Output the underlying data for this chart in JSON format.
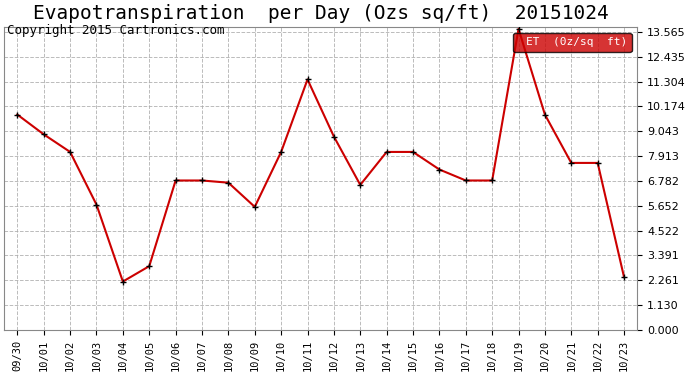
{
  "title": "Evapotranspiration  per Day (Ozs sq/ft)  20151024",
  "copyright": "Copyright 2015 Cartronics.com",
  "legend_label": "ET  (0z/sq  ft)",
  "x_labels": [
    "09/30",
    "10/01",
    "10/02",
    "10/03",
    "10/04",
    "10/05",
    "10/06",
    "10/07",
    "10/08",
    "10/09",
    "10/10",
    "10/11",
    "10/12",
    "10/13",
    "10/14",
    "10/15",
    "10/16",
    "10/17",
    "10/18",
    "10/19",
    "10/20",
    "10/21",
    "10/22",
    "10/23"
  ],
  "y_values": [
    9.8,
    8.9,
    8.1,
    5.7,
    2.2,
    2.9,
    6.8,
    6.8,
    6.7,
    5.6,
    8.1,
    11.4,
    8.8,
    6.6,
    8.1,
    8.1,
    7.3,
    6.8,
    6.8,
    13.7,
    9.8,
    7.6,
    7.6,
    2.4
  ],
  "y_ticks": [
    0.0,
    1.13,
    2.261,
    3.391,
    4.522,
    5.652,
    6.782,
    7.913,
    9.043,
    10.174,
    11.304,
    12.435,
    13.565
  ],
  "y_min": 0.0,
  "y_max": 13.565,
  "line_color": "#cc0000",
  "marker_color": "#000000",
  "background_color": "#ffffff",
  "grid_color": "#aaaaaa",
  "title_fontsize": 14,
  "copyright_fontsize": 9,
  "legend_bg": "#cc0000",
  "legend_text_color": "#ffffff"
}
